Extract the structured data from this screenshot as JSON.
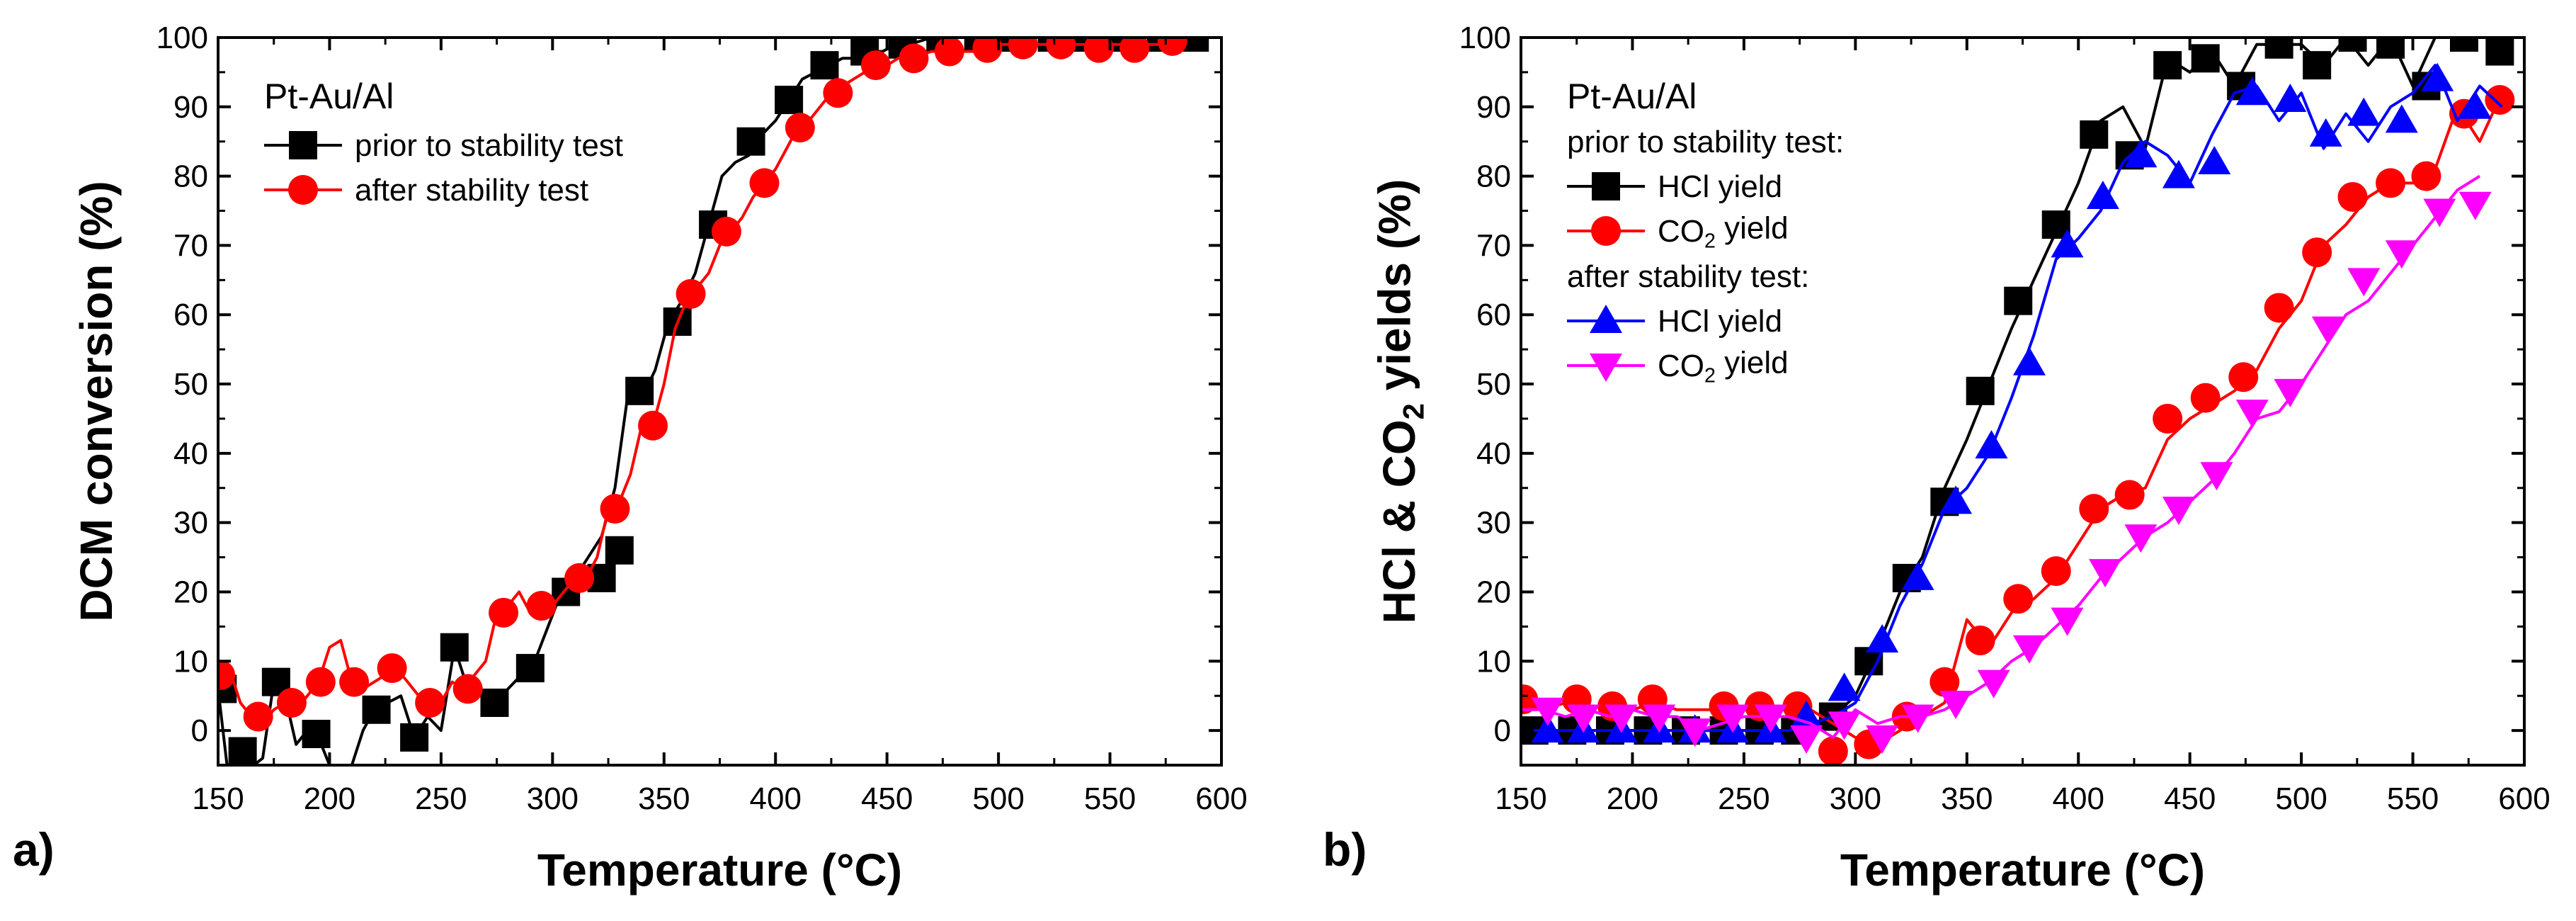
{
  "chart_data": [
    {
      "type": "line",
      "panel_label": "a)",
      "title": "",
      "xlabel": "Temperature (°C)",
      "ylabel": "DCM conversion (%)",
      "xlim": [
        150,
        600
      ],
      "ylim": [
        -5,
        100
      ],
      "xticks": [
        150,
        200,
        250,
        300,
        350,
        400,
        450,
        500,
        550,
        600
      ],
      "yticks": [
        0,
        10,
        20,
        30,
        40,
        50,
        60,
        70,
        80,
        90,
        100
      ],
      "legend_title": "Pt-Au/Al",
      "legend_position": "top-left",
      "series": [
        {
          "name": "prior to stability test",
          "color": "#000000",
          "marker": "square",
          "line_x": [
            150,
            154,
            158,
            162,
            166,
            170,
            175,
            180,
            185,
            190,
            195,
            200,
            205,
            210,
            215,
            220,
            226,
            232,
            238,
            244,
            250,
            256,
            262,
            268,
            274,
            280,
            286,
            292,
            298,
            304,
            310,
            316,
            322,
            328,
            334,
            340,
            346,
            352,
            358,
            364,
            370,
            376,
            382,
            388,
            394,
            400,
            406,
            412,
            418,
            424,
            430,
            436,
            442,
            448,
            454,
            460,
            470,
            480,
            490,
            500,
            520,
            540,
            560,
            580,
            590
          ],
          "line_y": [
            6,
            -5,
            -5,
            -3,
            -5,
            -4,
            7,
            5,
            -2,
            0,
            -1,
            -5,
            -5,
            -5,
            0,
            3,
            4,
            5,
            -1,
            2,
            0,
            12,
            6,
            5,
            4,
            6,
            8,
            10,
            15,
            20,
            22,
            25,
            28,
            35,
            49,
            48,
            52,
            59,
            62,
            66,
            73,
            80,
            82,
            83,
            86,
            88,
            91,
            94,
            95,
            96,
            97,
            97,
            98,
            98,
            99,
            99,
            100,
            100,
            100,
            100,
            100,
            100,
            100,
            100,
            100
          ],
          "marker_x": [
            152,
            161,
            176,
            194,
            221,
            238,
            256,
            274,
            290,
            306,
            322,
            330,
            339,
            356,
            372,
            389,
            406,
            422,
            440,
            457,
            474,
            491,
            507,
            524,
            540,
            556,
            573,
            588
          ],
          "marker_y": [
            6,
            -3,
            7,
            -0.5,
            3,
            -1,
            12,
            4,
            9,
            20,
            22,
            26,
            49,
            59,
            73,
            85,
            91,
            96,
            98,
            99,
            100,
            100,
            100,
            100,
            100,
            100,
            100,
            100
          ]
        },
        {
          "name": "after stability test",
          "color": "#ff0000",
          "marker": "circle",
          "line_x": [
            150,
            155,
            160,
            165,
            170,
            175,
            180,
            185,
            190,
            195,
            200,
            205,
            210,
            215,
            220,
            225,
            230,
            235,
            240,
            245,
            250,
            255,
            260,
            265,
            270,
            275,
            280,
            285,
            290,
            295,
            300,
            305,
            310,
            315,
            320,
            325,
            330,
            335,
            340,
            345,
            350,
            355,
            360,
            365,
            370,
            375,
            380,
            385,
            390,
            395,
            400,
            405,
            410,
            415,
            420,
            425,
            430,
            435,
            440,
            445,
            450,
            455,
            460,
            470,
            480,
            490,
            500,
            510,
            520,
            530,
            540,
            550,
            560,
            570,
            580
          ],
          "line_y": [
            8,
            9,
            4,
            2,
            1,
            3,
            4,
            3,
            5,
            7,
            12,
            13,
            7,
            6,
            7,
            8,
            9,
            7,
            5,
            4,
            4,
            7,
            6,
            8,
            10,
            17,
            18,
            20,
            17,
            19,
            18,
            20,
            22,
            22,
            25,
            32,
            33,
            37,
            44,
            44,
            50,
            58,
            62,
            64,
            66,
            70,
            72,
            74,
            77,
            79,
            81,
            84,
            87,
            88,
            90,
            92,
            93,
            94,
            95,
            96,
            96,
            97,
            97,
            98,
            98,
            98,
            99,
            99,
            99,
            99,
            99,
            99,
            99,
            99,
            99
          ],
          "marker_x": [
            151,
            168,
            183,
            196,
            211,
            228,
            245,
            262,
            278,
            295,
            312,
            328,
            345,
            362,
            378,
            395,
            411,
            428,
            445,
            462,
            478,
            495,
            511,
            528,
            545,
            561,
            578
          ],
          "marker_y": [
            8,
            2,
            4,
            7,
            7,
            9,
            4,
            6,
            17,
            18,
            22,
            32,
            44,
            63,
            72,
            79,
            87,
            92,
            96,
            97,
            98,
            98.5,
            99,
            99,
            98.5,
            98.5,
            99.5
          ]
        }
      ]
    },
    {
      "type": "line",
      "panel_label": "b)",
      "title": "",
      "xlabel": "Temperature (°C)",
      "ylabel_parts": [
        "HCl & CO",
        "2",
        " yields (%)"
      ],
      "xlim": [
        150,
        600
      ],
      "ylim": [
        -5,
        100
      ],
      "xticks": [
        150,
        200,
        250,
        300,
        350,
        400,
        450,
        500,
        550,
        600
      ],
      "yticks": [
        0,
        10,
        20,
        30,
        40,
        50,
        60,
        70,
        80,
        90,
        100
      ],
      "legend_title": "Pt-Au/Al",
      "legend_group_1": "prior to stability test:",
      "legend_group_2": "after stability test:",
      "legend_position": "top-left",
      "series": [
        {
          "name": "HCl yield",
          "label_parts": [
            "HCl yield"
          ],
          "group": "prior to stability test",
          "color": "#000000",
          "marker": "square",
          "line_x": [
            150,
            160,
            170,
            180,
            190,
            200,
            210,
            220,
            230,
            240,
            250,
            260,
            270,
            280,
            290,
            300,
            310,
            320,
            330,
            340,
            350,
            360,
            370,
            380,
            390,
            400,
            410,
            420,
            430,
            440,
            450,
            460,
            470,
            480,
            490,
            500,
            510,
            520,
            530,
            540,
            550,
            560,
            570,
            580,
            590
          ],
          "line_y": [
            0,
            0,
            0,
            0,
            0,
            0,
            0,
            0,
            0,
            0,
            0,
            0,
            0,
            1,
            2,
            5,
            12,
            20,
            25,
            35,
            42,
            50,
            58,
            65,
            72,
            79,
            88,
            90,
            84,
            97,
            95,
            98,
            93,
            99,
            99,
            99,
            96,
            100,
            96,
            100,
            93,
            100,
            100,
            100,
            100
          ],
          "marker_x": [
            156,
            173,
            190,
            207,
            224,
            241,
            257,
            273,
            290,
            306,
            323,
            340,
            356,
            373,
            390,
            407,
            423,
            440,
            457,
            473,
            490,
            507,
            523,
            540,
            556,
            573,
            589
          ],
          "marker_y": [
            0,
            0,
            0,
            0,
            0,
            0,
            0,
            0,
            2,
            10,
            22,
            33,
            49,
            62,
            73,
            86,
            83,
            96,
            97,
            93,
            99,
            96,
            100,
            99,
            93,
            100,
            98
          ]
        },
        {
          "name": "CO2 yield",
          "label_parts": [
            "CO",
            "2",
            " yield"
          ],
          "group": "prior to stability test",
          "color": "#ff0000",
          "marker": "circle",
          "line_x": [
            150,
            160,
            170,
            180,
            190,
            200,
            210,
            220,
            230,
            240,
            250,
            260,
            270,
            280,
            290,
            300,
            310,
            320,
            330,
            340,
            350,
            360,
            370,
            380,
            390,
            400,
            410,
            420,
            430,
            440,
            450,
            460,
            470,
            480,
            490,
            500,
            510,
            520,
            530,
            540,
            550,
            560,
            570,
            580,
            590
          ],
          "line_y": [
            4,
            3,
            4,
            3,
            4,
            3,
            4,
            3,
            3,
            3,
            3,
            3,
            3,
            3,
            1,
            -1,
            -2,
            0,
            2,
            4,
            16,
            12,
            17,
            19,
            22,
            27,
            32,
            34,
            35,
            42,
            45,
            47,
            49,
            52,
            58,
            62,
            70,
            73,
            77,
            79,
            79,
            81,
            90,
            85,
            92
          ],
          "marker_x": [
            151,
            175,
            191,
            209,
            241,
            257,
            274,
            290,
            306,
            323,
            340,
            356,
            373,
            390,
            407,
            423,
            440,
            457,
            474,
            490,
            507,
            523,
            540,
            556,
            573,
            589
          ],
          "marker_y": [
            4.5,
            4.5,
            3.5,
            4.5,
            3.5,
            3.5,
            3.5,
            -3,
            -2,
            2,
            7,
            13,
            19,
            23,
            32,
            34,
            45,
            48,
            51,
            61,
            69,
            77,
            79,
            80,
            89,
            91
          ]
        },
        {
          "name": "HCl yield",
          "label_parts": [
            "HCl yield"
          ],
          "group": "after stability test",
          "color": "#0000ff",
          "marker": "triangle-up",
          "line_x": [
            150,
            160,
            170,
            180,
            190,
            200,
            210,
            220,
            230,
            240,
            250,
            260,
            270,
            280,
            290,
            300,
            310,
            320,
            330,
            340,
            350,
            360,
            370,
            380,
            390,
            400,
            410,
            420,
            430,
            440,
            450,
            460,
            470,
            480,
            490,
            500,
            510,
            520,
            530,
            540,
            550,
            560,
            570,
            580,
            590
          ],
          "line_y": [
            0,
            0,
            0,
            0,
            0,
            0,
            0,
            0,
            0,
            0,
            0,
            0,
            0,
            1,
            2,
            4,
            10,
            18,
            24,
            32,
            35,
            40,
            48,
            57,
            68,
            71,
            75,
            82,
            85,
            83,
            79,
            86,
            92,
            93,
            88,
            92,
            84,
            89,
            85,
            90,
            92,
            96,
            88,
            93,
            90
          ],
          "marker_x": [
            162,
            178,
            195,
            212,
            228,
            245,
            262,
            278,
            295,
            312,
            328,
            345,
            361,
            378,
            395,
            411,
            428,
            445,
            461,
            478,
            495,
            511,
            528,
            545,
            561,
            578
          ],
          "marker_y": [
            0,
            0,
            0,
            0,
            0,
            0,
            0,
            2,
            6,
            13,
            22,
            33,
            41,
            53,
            70,
            77,
            83,
            80,
            82,
            92,
            91,
            86,
            89,
            88,
            94,
            90
          ]
        },
        {
          "name": "CO2 yield",
          "label_parts": [
            "CO",
            "2",
            " yield"
          ],
          "group": "after stability test",
          "color": "#ff00ff",
          "marker": "triangle-down",
          "line_x": [
            150,
            160,
            170,
            180,
            190,
            200,
            210,
            220,
            230,
            240,
            250,
            260,
            270,
            280,
            290,
            300,
            310,
            320,
            330,
            340,
            350,
            360,
            370,
            380,
            390,
            400,
            410,
            420,
            430,
            440,
            450,
            460,
            470,
            480,
            490,
            500,
            510,
            520,
            530,
            540,
            550,
            560,
            570,
            580
          ],
          "line_y": [
            3,
            3,
            2,
            3,
            2,
            3,
            2,
            2,
            0,
            1,
            2,
            2,
            2,
            1,
            -1,
            3,
            1,
            2,
            2,
            3,
            5,
            7,
            10,
            12,
            15,
            18,
            22,
            25,
            28,
            30,
            33,
            36,
            40,
            45,
            46,
            50,
            55,
            60,
            62,
            66,
            70,
            74,
            78,
            80
          ],
          "marker_x": [
            162,
            178,
            195,
            212,
            228,
            245,
            262,
            278,
            295,
            312,
            328,
            345,
            362,
            378,
            395,
            412,
            428,
            445,
            462,
            478,
            495,
            512,
            528,
            545,
            562,
            578
          ],
          "marker_y": [
            3,
            2,
            2,
            2,
            0,
            2,
            2,
            -1,
            1,
            -1,
            2,
            4,
            7,
            12,
            16,
            23,
            28,
            32,
            37,
            46,
            49,
            58,
            65,
            69,
            75,
            76
          ]
        }
      ]
    }
  ]
}
